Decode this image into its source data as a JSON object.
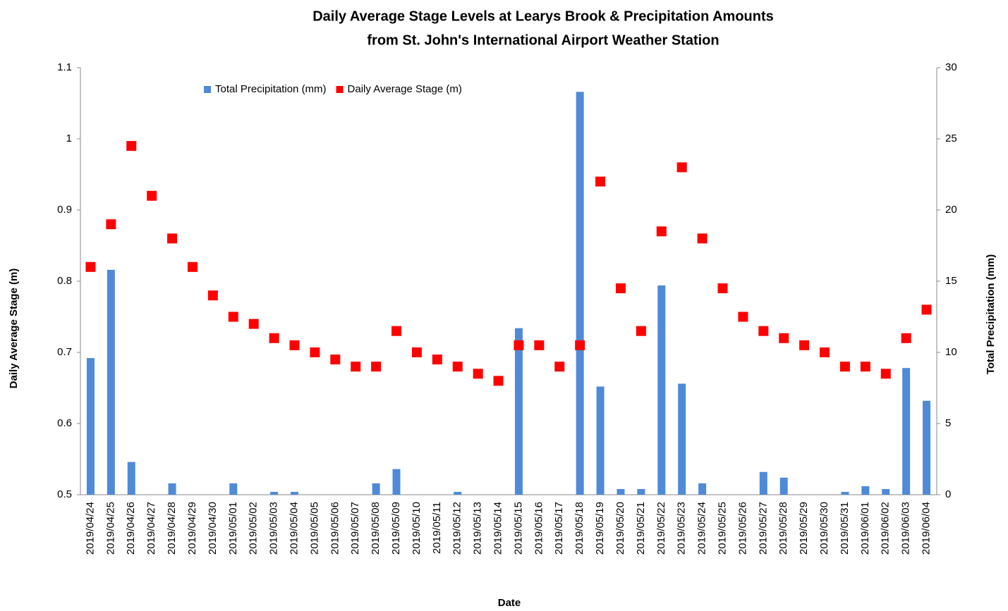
{
  "chart_data": {
    "type": "bar-scatter",
    "title": [
      "Daily Average Stage Levels at Learys Brook & Precipitation Amounts",
      "from St. John's International Airport Weather Station"
    ],
    "x_label": "Date",
    "y_label": "Daily Average Stage (m)",
    "y2_label": "Total Precipitation (mm)",
    "categories": [
      "2019/04/24",
      "2019/04/25",
      "2019/04/26",
      "2019/04/27",
      "2019/04/28",
      "2019/04/29",
      "2019/04/30",
      "2019/05/01",
      "2019/05/02",
      "2019/05/03",
      "2019/05/04",
      "2019/05/05",
      "2019/05/06",
      "2019/05/07",
      "2019/05/08",
      "2019/05/09",
      "2019/05/10",
      "2019/05/11",
      "2019/05/12",
      "2019/05/13",
      "2019/05/14",
      "2019/05/15",
      "2019/05/16",
      "2019/05/17",
      "2019/05/18",
      "2019/05/19",
      "2019/05/20",
      "2019/05/21",
      "2019/05/22",
      "2019/05/23",
      "2019/05/24",
      "2019/05/25",
      "2019/05/26",
      "2019/05/27",
      "2019/05/28",
      "2019/05/29",
      "2019/05/30",
      "2019/05/31",
      "2019/06/01",
      "2019/06/02",
      "2019/06/03",
      "2019/06/04"
    ],
    "series": [
      {
        "name": "Total Precipitation (mm)",
        "kind": "bar",
        "axis": "y2",
        "color": "#4f8ad8",
        "values": [
          9.6,
          15.8,
          2.3,
          0,
          0.8,
          0,
          0,
          0.8,
          0,
          0.2,
          0.2,
          0,
          0,
          0,
          0.8,
          1.8,
          0,
          0,
          0.2,
          0,
          0,
          11.7,
          0,
          0,
          28.3,
          7.6,
          0.4,
          0.4,
          14.7,
          7.8,
          0.8,
          0,
          0,
          1.6,
          1.2,
          0,
          0,
          0.2,
          0.6,
          0.4,
          8.9,
          6.6
        ]
      },
      {
        "name": "Daily Average Stage (m)",
        "kind": "scatter",
        "axis": "y",
        "color": "#ff0000",
        "values": [
          0.82,
          0.88,
          0.99,
          0.92,
          0.86,
          0.82,
          0.78,
          0.75,
          0.74,
          0.72,
          0.71,
          0.7,
          0.69,
          0.68,
          0.68,
          0.73,
          0.7,
          0.69,
          0.68,
          0.67,
          0.66,
          0.71,
          0.71,
          0.68,
          0.71,
          0.94,
          0.79,
          0.73,
          0.87,
          0.96,
          0.86,
          0.79,
          0.75,
          0.73,
          0.72,
          0.71,
          0.7,
          0.68,
          0.68,
          0.67,
          0.72,
          0.76
        ]
      }
    ],
    "ylim": [
      0.5,
      1.1
    ],
    "yticks": [
      0.5,
      0.6,
      0.7,
      0.8,
      0.9,
      1,
      1.1
    ],
    "y2lim": [
      0,
      30
    ],
    "y2ticks": [
      0,
      5,
      10,
      15,
      20,
      25,
      30
    ],
    "grid": false,
    "legend": "top-left"
  }
}
